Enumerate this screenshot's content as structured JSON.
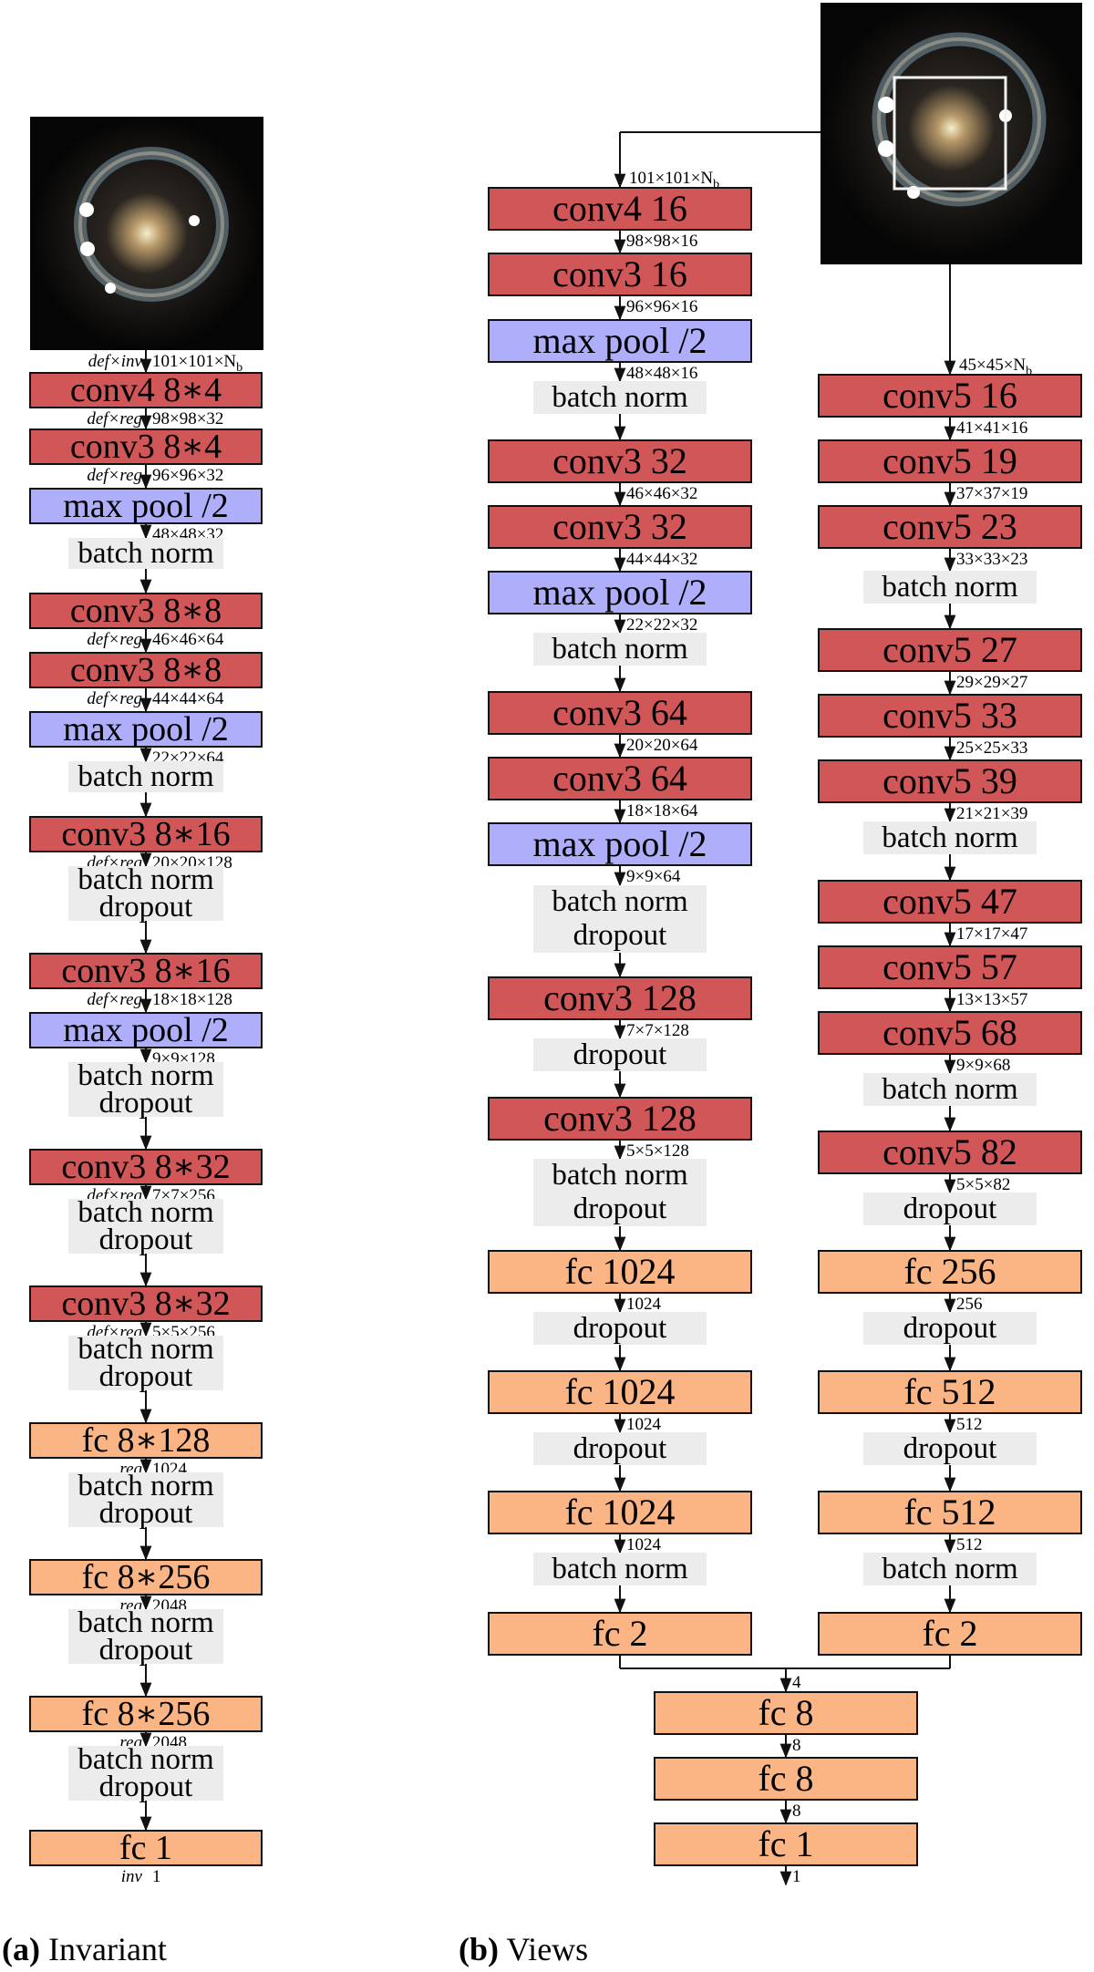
{
  "col_a": {
    "input_dim": "101×101×N",
    "input_dim_sub": "b",
    "input_op": "def×inv",
    "layers": [
      {
        "kind": "conv",
        "label": "conv4 8∗4",
        "dim": "98×98×32",
        "op": "def×reg"
      },
      {
        "kind": "conv",
        "label": "conv3 8∗4",
        "dim": "96×96×32",
        "op": "def×reg"
      },
      {
        "kind": "pool",
        "label": "max pool /2",
        "dim": "48×48×32"
      },
      {
        "kind": "note",
        "lines": [
          "batch norm"
        ]
      },
      {
        "kind": "conv",
        "label": "conv3 8∗8",
        "dim": "46×46×64",
        "op": "def×reg"
      },
      {
        "kind": "conv",
        "label": "conv3 8∗8",
        "dim": "44×44×64",
        "op": "def×reg"
      },
      {
        "kind": "pool",
        "label": "max pool /2",
        "dim": "22×22×64"
      },
      {
        "kind": "note",
        "lines": [
          "batch norm"
        ]
      },
      {
        "kind": "conv",
        "label": "conv3 8∗16",
        "dim": "20×20×128",
        "op": "def×reg"
      },
      {
        "kind": "note",
        "lines": [
          "batch norm",
          "dropout"
        ]
      },
      {
        "kind": "conv",
        "label": "conv3 8∗16",
        "dim": "18×18×128",
        "op": "def×reg"
      },
      {
        "kind": "pool",
        "label": "max pool /2",
        "dim": "9×9×128"
      },
      {
        "kind": "note",
        "lines": [
          "batch norm",
          "dropout"
        ]
      },
      {
        "kind": "conv",
        "label": "conv3 8∗32",
        "dim": "7×7×256",
        "op": "def×reg"
      },
      {
        "kind": "note",
        "lines": [
          "batch norm",
          "dropout"
        ]
      },
      {
        "kind": "conv",
        "label": "conv3 8∗32",
        "dim": "5×5×256",
        "op": "def×reg"
      },
      {
        "kind": "note",
        "lines": [
          "batch norm",
          "dropout"
        ]
      },
      {
        "kind": "fc",
        "label": "fc 8∗128",
        "dim": "1024",
        "op": "reg"
      },
      {
        "kind": "note",
        "lines": [
          "batch norm",
          "dropout"
        ]
      },
      {
        "kind": "fc",
        "label": "fc 8∗256",
        "dim": "2048",
        "op": "reg"
      },
      {
        "kind": "note",
        "lines": [
          "batch norm",
          "dropout"
        ]
      },
      {
        "kind": "fc",
        "label": "fc 8∗256",
        "dim": "2048",
        "op": "reg"
      },
      {
        "kind": "note",
        "lines": [
          "batch norm",
          "dropout"
        ]
      },
      {
        "kind": "fc",
        "label": "fc 1",
        "dim": "1",
        "op": "inv"
      }
    ]
  },
  "col_b1": {
    "input_dim": "101×101×N",
    "input_dim_sub": "b",
    "layers": [
      {
        "kind": "conv",
        "label": "conv4 16",
        "dim": "98×98×16"
      },
      {
        "kind": "conv",
        "label": "conv3 16",
        "dim": "96×96×16"
      },
      {
        "kind": "pool",
        "label": "max pool /2",
        "dim": "48×48×16"
      },
      {
        "kind": "note",
        "lines": [
          "batch norm"
        ]
      },
      {
        "kind": "conv",
        "label": "conv3 32",
        "dim": "46×46×32"
      },
      {
        "kind": "conv",
        "label": "conv3 32",
        "dim": "44×44×32"
      },
      {
        "kind": "pool",
        "label": "max pool /2",
        "dim": "22×22×32"
      },
      {
        "kind": "note",
        "lines": [
          "batch norm"
        ]
      },
      {
        "kind": "conv",
        "label": "conv3 64",
        "dim": "20×20×64"
      },
      {
        "kind": "conv",
        "label": "conv3 64",
        "dim": "18×18×64"
      },
      {
        "kind": "pool",
        "label": "max pool /2",
        "dim": "9×9×64"
      },
      {
        "kind": "note",
        "lines": [
          "batch norm",
          "dropout"
        ]
      },
      {
        "kind": "conv",
        "label": "conv3 128",
        "dim": "7×7×128"
      },
      {
        "kind": "note",
        "lines": [
          "dropout"
        ]
      },
      {
        "kind": "conv",
        "label": "conv3 128",
        "dim": "5×5×128"
      },
      {
        "kind": "note",
        "lines": [
          "batch norm",
          "dropout"
        ]
      },
      {
        "kind": "fc",
        "label": "fc 1024",
        "dim": "1024"
      },
      {
        "kind": "note",
        "lines": [
          "dropout"
        ]
      },
      {
        "kind": "fc",
        "label": "fc 1024",
        "dim": "1024"
      },
      {
        "kind": "note",
        "lines": [
          "dropout"
        ]
      },
      {
        "kind": "fc",
        "label": "fc 1024",
        "dim": "1024"
      },
      {
        "kind": "note",
        "lines": [
          "batch norm"
        ]
      },
      {
        "kind": "fc",
        "label": "fc 2"
      }
    ]
  },
  "col_b2": {
    "input_dim": "45×45×N",
    "input_dim_sub": "b",
    "layers": [
      {
        "kind": "conv",
        "label": "conv5 16",
        "dim": "41×41×16"
      },
      {
        "kind": "conv",
        "label": "conv5 19",
        "dim": "37×37×19"
      },
      {
        "kind": "conv",
        "label": "conv5 23",
        "dim": "33×33×23"
      },
      {
        "kind": "note",
        "lines": [
          "batch norm"
        ]
      },
      {
        "kind": "conv",
        "label": "conv5 27",
        "dim": "29×29×27"
      },
      {
        "kind": "conv",
        "label": "conv5 33",
        "dim": "25×25×33"
      },
      {
        "kind": "conv",
        "label": "conv5 39",
        "dim": "21×21×39"
      },
      {
        "kind": "note",
        "lines": [
          "batch norm"
        ]
      },
      {
        "kind": "conv",
        "label": "conv5 47",
        "dim": "17×17×47"
      },
      {
        "kind": "conv",
        "label": "conv5 57",
        "dim": "13×13×57"
      },
      {
        "kind": "conv",
        "label": "conv5 68",
        "dim": "9×9×68"
      },
      {
        "kind": "note",
        "lines": [
          "batch norm"
        ]
      },
      {
        "kind": "conv",
        "label": "conv5 82",
        "dim": "5×5×82"
      },
      {
        "kind": "note",
        "lines": [
          "dropout"
        ]
      },
      {
        "kind": "fc",
        "label": "fc 256",
        "dim": "256"
      },
      {
        "kind": "note",
        "lines": [
          "dropout"
        ]
      },
      {
        "kind": "fc",
        "label": "fc 512",
        "dim": "512"
      },
      {
        "kind": "note",
        "lines": [
          "dropout"
        ]
      },
      {
        "kind": "fc",
        "label": "fc 512",
        "dim": "512"
      },
      {
        "kind": "note",
        "lines": [
          "batch norm"
        ]
      },
      {
        "kind": "fc",
        "label": "fc 2"
      }
    ]
  },
  "merge": {
    "input_dim": "4",
    "layers": [
      {
        "kind": "fc",
        "label": "fc 8",
        "dim": "8"
      },
      {
        "kind": "fc",
        "label": "fc 8",
        "dim": "8"
      },
      {
        "kind": "fc",
        "label": "fc 1",
        "dim": "1"
      }
    ]
  },
  "captions": {
    "a_letter": "(a)",
    "a_text": " Invariant",
    "b_letter": "(b)",
    "b_text": " Views"
  },
  "colors": {
    "conv": "#d05658",
    "pool": "#aeaefa",
    "fc": "#fbb584",
    "note": "#ececec"
  }
}
